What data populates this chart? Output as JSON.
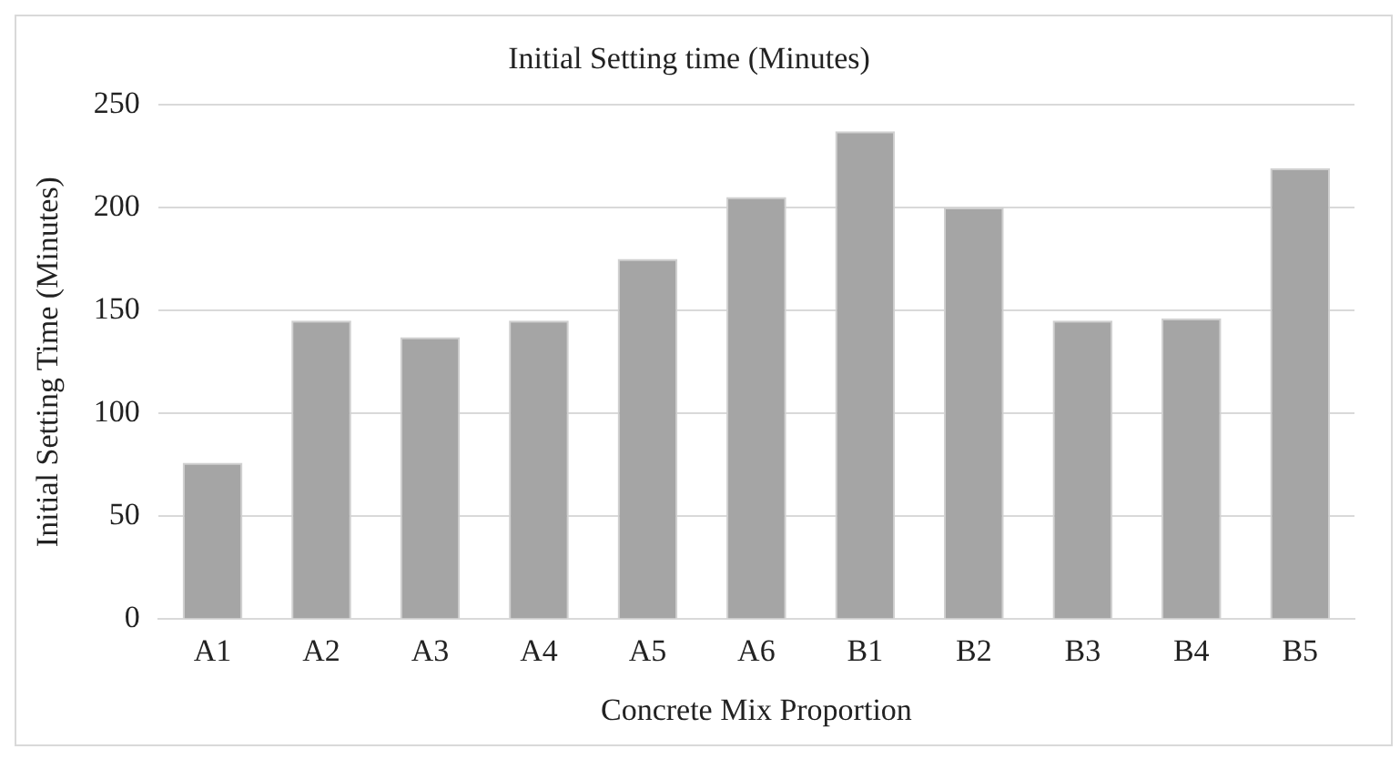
{
  "chart_data": {
    "type": "bar",
    "title": "Initial Setting time (Minutes)",
    "xlabel": "Concrete Mix Proportion",
    "ylabel": "Initial Setting Time (Minutes)",
    "categories": [
      "A1",
      "A2",
      "A3",
      "A4",
      "A5",
      "A6",
      "B1",
      "B2",
      "B3",
      "B4",
      "B5"
    ],
    "values": [
      76,
      145,
      137,
      145,
      175,
      205,
      237,
      200,
      145,
      146,
      219
    ],
    "color": "#a5a5a5",
    "ylim": [
      0,
      250
    ],
    "yticks": [
      0,
      50,
      100,
      150,
      200,
      250
    ],
    "grid": "y"
  }
}
